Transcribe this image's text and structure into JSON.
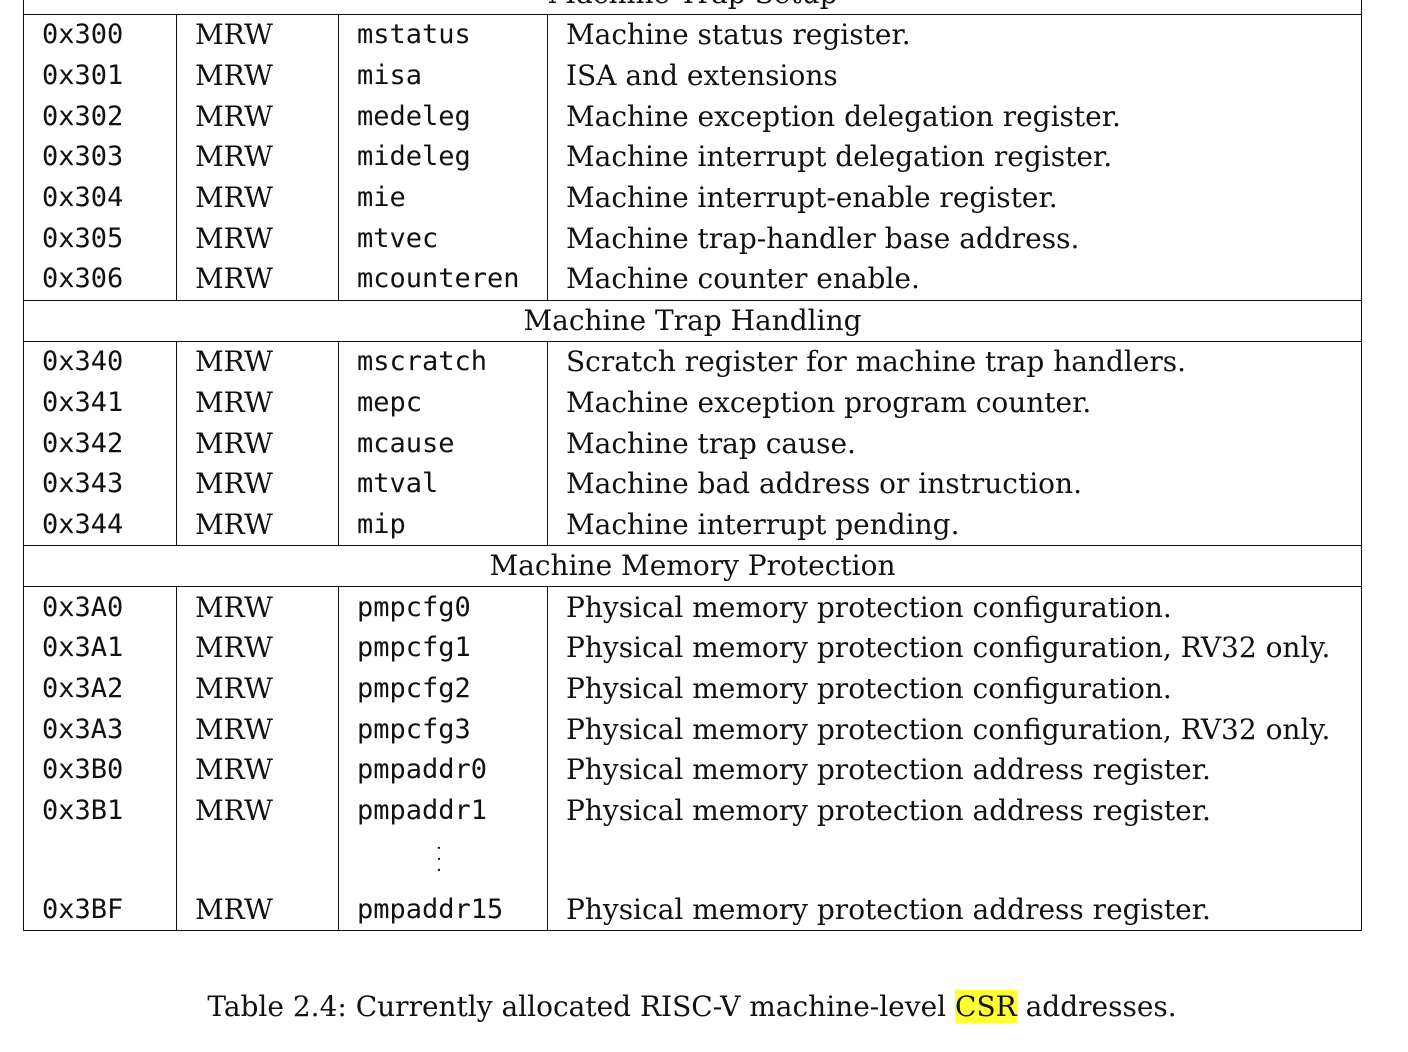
{
  "sections": [
    {
      "title": "Machine Trap Setup",
      "rows": [
        {
          "number": "0x300",
          "privilege": "MRW",
          "name": "mstatus",
          "description": "Machine status register."
        },
        {
          "number": "0x301",
          "privilege": "MRW",
          "name": "misa",
          "description": "ISA and extensions"
        },
        {
          "number": "0x302",
          "privilege": "MRW",
          "name": "medeleg",
          "description": "Machine exception delegation register."
        },
        {
          "number": "0x303",
          "privilege": "MRW",
          "name": "mideleg",
          "description": "Machine interrupt delegation register."
        },
        {
          "number": "0x304",
          "privilege": "MRW",
          "name": "mie",
          "description": "Machine interrupt-enable register."
        },
        {
          "number": "0x305",
          "privilege": "MRW",
          "name": "mtvec",
          "description": "Machine trap-handler base address."
        },
        {
          "number": "0x306",
          "privilege": "MRW",
          "name": "mcounteren",
          "description": "Machine counter enable."
        }
      ]
    },
    {
      "title": "Machine Trap Handling",
      "rows": [
        {
          "number": "0x340",
          "privilege": "MRW",
          "name": "mscratch",
          "description": "Scratch register for machine trap handlers."
        },
        {
          "number": "0x341",
          "privilege": "MRW",
          "name": "mepc",
          "description": "Machine exception program counter."
        },
        {
          "number": "0x342",
          "privilege": "MRW",
          "name": "mcause",
          "description": "Machine trap cause."
        },
        {
          "number": "0x343",
          "privilege": "MRW",
          "name": "mtval",
          "description": "Machine bad address or instruction."
        },
        {
          "number": "0x344",
          "privilege": "MRW",
          "name": "mip",
          "description": "Machine interrupt pending."
        }
      ]
    },
    {
      "title": "Machine Memory Protection",
      "rows": [
        {
          "number": "0x3A0",
          "privilege": "MRW",
          "name": "pmpcfg0",
          "description": "Physical memory protection configuration."
        },
        {
          "number": "0x3A1",
          "privilege": "MRW",
          "name": "pmpcfg1",
          "description": "Physical memory protection configuration, RV32 only."
        },
        {
          "number": "0x3A2",
          "privilege": "MRW",
          "name": "pmpcfg2",
          "description": "Physical memory protection configuration."
        },
        {
          "number": "0x3A3",
          "privilege": "MRW",
          "name": "pmpcfg3",
          "description": "Physical memory protection configuration, RV32 only."
        },
        {
          "number": "0x3B0",
          "privilege": "MRW",
          "name": "pmpaddr0",
          "description": "Physical memory protection address register."
        },
        {
          "number": "0x3B1",
          "privilege": "MRW",
          "name": "pmpaddr1",
          "description": "Physical memory protection address register."
        },
        {
          "ellipsis": true
        },
        {
          "number": "0x3BF",
          "privilege": "MRW",
          "name": "pmpaddr15",
          "description": "Physical memory protection address register."
        }
      ]
    }
  ],
  "caption": {
    "prefix": "Table 2.4: Currently allocated RISC-V machine-level",
    "highlighted": "CSR",
    "suffix": "addresses."
  },
  "colors": {
    "highlight": "#ffff33",
    "text": "#111111",
    "rule": "#111111"
  }
}
